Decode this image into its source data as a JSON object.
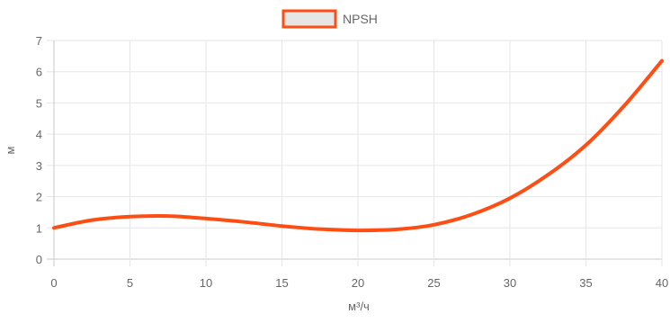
{
  "chart_data": {
    "type": "line",
    "title": "",
    "xlabel": "м³/ч",
    "ylabel": "м",
    "xlim": [
      0,
      40
    ],
    "ylim": [
      0,
      7
    ],
    "x_ticks": [
      0,
      5,
      10,
      15,
      20,
      25,
      30,
      35,
      40
    ],
    "y_ticks": [
      0,
      1,
      2,
      3,
      4,
      5,
      6,
      7
    ],
    "grid": true,
    "legend_position": "top-center",
    "series": [
      {
        "name": "NPSH",
        "color": "#ff4d14",
        "legend_fill": "#e6e6e6",
        "x": [
          0,
          2.5,
          5,
          7.5,
          10,
          12.5,
          15,
          17.5,
          20,
          22.5,
          25,
          27.5,
          30,
          32.5,
          35,
          37.5,
          40
        ],
        "y": [
          1.0,
          1.25,
          1.36,
          1.38,
          1.3,
          1.19,
          1.06,
          0.96,
          0.92,
          0.95,
          1.1,
          1.43,
          1.95,
          2.7,
          3.65,
          4.9,
          6.35
        ]
      }
    ]
  }
}
